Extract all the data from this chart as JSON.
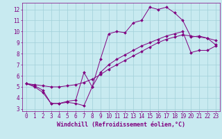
{
  "bg_color": "#c8eaf0",
  "line_color": "#800080",
  "grid_color": "#a0d0d8",
  "xlabel": "Windchill (Refroidissement éolien,°C)",
  "xlabel_fontsize": 6,
  "tick_fontsize": 5.5,
  "xlim": [
    -0.5,
    23.5
  ],
  "ylim": [
    2.8,
    12.6
  ],
  "yticks": [
    3,
    4,
    5,
    6,
    7,
    8,
    9,
    10,
    11,
    12
  ],
  "xticks": [
    0,
    1,
    2,
    3,
    4,
    5,
    6,
    7,
    8,
    9,
    10,
    11,
    12,
    13,
    14,
    15,
    16,
    17,
    18,
    19,
    20,
    21,
    22,
    23
  ],
  "curve1_x": [
    0,
    1,
    2,
    3,
    4,
    5,
    6,
    7,
    8,
    9,
    10,
    11,
    12,
    13,
    14,
    15,
    16,
    17,
    18,
    19,
    20,
    21,
    22,
    23
  ],
  "curve1_y": [
    5.3,
    5.0,
    4.5,
    3.5,
    3.5,
    3.6,
    3.5,
    3.3,
    5.0,
    7.5,
    9.8,
    10.0,
    9.9,
    10.8,
    11.0,
    12.2,
    12.0,
    12.2,
    11.7,
    11.0,
    9.5,
    9.6,
    9.4,
    8.8
  ],
  "curve2_x": [
    0,
    1,
    2,
    3,
    4,
    5,
    6,
    7,
    8,
    9,
    10,
    11,
    12,
    13,
    14,
    15,
    16,
    17,
    18,
    19,
    20,
    21,
    22,
    23
  ],
  "curve2_y": [
    5.3,
    5.2,
    5.1,
    5.0,
    5.0,
    5.1,
    5.2,
    5.4,
    5.7,
    6.1,
    6.6,
    7.0,
    7.4,
    7.8,
    8.2,
    8.6,
    9.0,
    9.3,
    9.5,
    9.7,
    9.6,
    9.5,
    9.4,
    9.2
  ],
  "curve3_x": [
    0,
    1,
    2,
    3,
    4,
    5,
    6,
    7,
    8,
    9,
    10,
    11,
    12,
    13,
    14,
    15,
    16,
    17,
    18,
    19,
    20,
    21,
    22,
    23
  ],
  "curve3_y": [
    5.3,
    5.1,
    4.7,
    3.5,
    3.5,
    3.7,
    3.8,
    6.3,
    5.0,
    6.3,
    7.0,
    7.5,
    7.9,
    8.3,
    8.7,
    9.0,
    9.3,
    9.6,
    9.8,
    10.0,
    8.1,
    8.3,
    8.3,
    8.7
  ]
}
